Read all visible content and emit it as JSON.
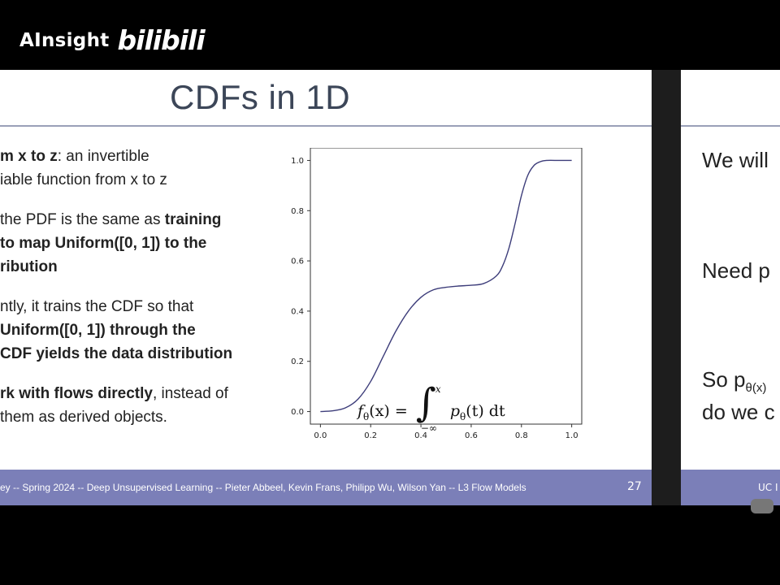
{
  "watermark": {
    "brand": "AInsight",
    "platform": "bilibili"
  },
  "slide": {
    "title": "CDFs in 1D",
    "bullets": [
      {
        "lines": [
          [
            {
              "t": "m x to z",
              "b": true
            },
            {
              "t": ": an invertible",
              "b": false
            }
          ],
          [
            {
              "t": "iable function from x to z",
              "b": false
            }
          ]
        ]
      },
      {
        "lines": [
          [
            {
              "t": "the PDF is the same as ",
              "b": false
            },
            {
              "t": "training",
              "b": true
            }
          ],
          [
            {
              "t": "to map Uniform([0, 1]) to the",
              "b": true
            }
          ],
          [
            {
              "t": "ribution",
              "b": true
            }
          ]
        ]
      },
      {
        "lines": [
          [
            {
              "t": "ntly, it trains the CDF so that",
              "b": false
            }
          ],
          [
            {
              "t": " Uniform([0, 1]) through the",
              "b": true
            }
          ],
          [
            {
              "t": "CDF yields the data distribution",
              "b": true
            }
          ]
        ]
      },
      {
        "lines": [
          [
            {
              "t": "rk with flows directly",
              "b": true
            },
            {
              "t": ", instead of",
              "b": false
            }
          ],
          [
            {
              "t": "them as derived objects.",
              "b": false
            }
          ]
        ]
      }
    ],
    "formula": {
      "lhs": "f",
      "lhs_sub": "θ",
      "lhs_arg": "(x) =",
      "upper": "x",
      "lower": "−∞",
      "integrand": "p",
      "integrand_sub": "θ",
      "integrand_arg": "(t) dt"
    },
    "footer_text": "ey -- Spring 2024 -- Deep Unsupervised Learning -- Pieter Abbeel, Kevin Frans, Philipp Wu, Wilson Yan -- L3 Flow Models",
    "page_number": "27"
  },
  "next_slide": {
    "lines": [
      "We will",
      "Need p",
      "So p",
      "do we c"
    ],
    "theta_suffix": "θ(x)",
    "footer_text": "UC I"
  },
  "chart_data": {
    "type": "line",
    "title": "",
    "xlabel": "",
    "ylabel": "",
    "xlim": [
      -0.04,
      1.04
    ],
    "ylim": [
      -0.05,
      1.05
    ],
    "x_ticks": [
      "0.0",
      "0.2",
      "0.4",
      "0.6",
      "0.8",
      "1.0"
    ],
    "y_ticks": [
      "0.0",
      "0.2",
      "0.4",
      "0.6",
      "0.8",
      "1.0"
    ],
    "grid": false,
    "color": "#3d3d7a",
    "series": [
      {
        "x": [
          0.0,
          0.05,
          0.1,
          0.15,
          0.2,
          0.25,
          0.3,
          0.35,
          0.4,
          0.45,
          0.5,
          0.55,
          0.6,
          0.65,
          0.7,
          0.725,
          0.75,
          0.775,
          0.8,
          0.825,
          0.85,
          0.875,
          0.9,
          0.95,
          1.0
        ],
        "y": [
          0.0,
          0.003,
          0.015,
          0.05,
          0.12,
          0.22,
          0.32,
          0.4,
          0.455,
          0.485,
          0.495,
          0.5,
          0.503,
          0.51,
          0.54,
          0.58,
          0.65,
          0.75,
          0.86,
          0.94,
          0.98,
          0.995,
          1.0,
          1.0,
          1.0
        ]
      }
    ]
  }
}
